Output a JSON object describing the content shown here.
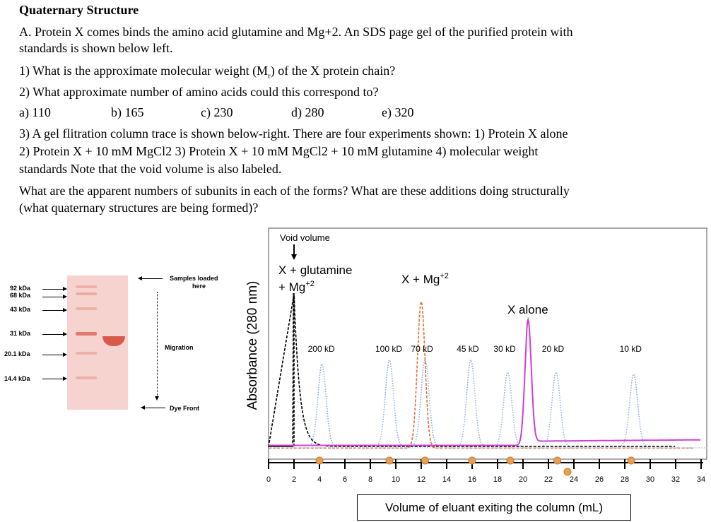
{
  "document": {
    "title": "Quaternary Structure",
    "lines": [
      "A. Protein X comes binds the amino acid glutamine and Mg+2. An SDS page gel of the purified protein with",
      "standards is shown below left.",
      "1) What is the approximate molecular weight (M",
      "2) What approximate number of amino acids could this correspond to?",
      "3) A gel flitration column trace is shown below-right. There are four experiments shown: 1) Protein X alone",
      "2) Protein X + 10 mM MgCl2 3) Protein X + 10 mM MgCl2 + 10 mM glutamine 4) molecular weight",
      "standards Note that the void volume is also labeled.",
      "What are the apparent numbers of subunits in each of the forms? What are these additions doing structurally",
      "(what quaternary structures are being formed)?"
    ],
    "q1_sub": "r",
    "q1_tail": ") of the X protein chain?",
    "choices": [
      "a) 110",
      "b) 165",
      "c) 230",
      "d) 280",
      "e) 320"
    ]
  },
  "gel": {
    "markers": [
      "92 kDa",
      "68 kDa",
      "43 kDa",
      "31 kDa",
      "20.1 kDa",
      "14.4 kDa"
    ],
    "samples_label_1": "Samples loaded",
    "samples_label_2": "here",
    "migration_label": "Migration",
    "dye_front_label": "Dye Front",
    "colors": {
      "gel": "#f7d3d0",
      "band": "#e07a6e"
    }
  },
  "chart_data": {
    "type": "line",
    "xlabel": "Volume of eluant exiting the column (mL)",
    "ylabel": "Absorbance (280 nm)",
    "xlim": [
      0,
      34
    ],
    "xticks": [
      0,
      2,
      4,
      6,
      8,
      10,
      12,
      14,
      16,
      18,
      20,
      22,
      24,
      26,
      28,
      30,
      32,
      34
    ],
    "ylim_relative": [
      0,
      1
    ],
    "grid": false,
    "annotations": {
      "void_volume": "Void volume",
      "glutamine_label_1": "X + glutamine",
      "glutamine_label_2": "+ Mg",
      "mg_label": "X + Mg",
      "superscript": "+2",
      "alone_label": "X alone"
    },
    "series": [
      {
        "name": "X + glutamine + Mg+2",
        "color": "#000000",
        "style": "dashed",
        "peaks": [
          {
            "x": 2.0,
            "y": 0.74
          }
        ]
      },
      {
        "name": "X + Mg+2",
        "color": "#e0703a",
        "style": "dashed",
        "peaks": [
          {
            "x": 12.0,
            "y": 0.71
          }
        ]
      },
      {
        "name": "X alone",
        "color": "#d040d0",
        "style": "solid",
        "peaks": [
          {
            "x": 20.4,
            "y": 0.59
          }
        ]
      },
      {
        "name": "standards",
        "color": "#7fa6e0",
        "style": "dotted",
        "peaks": [
          {
            "x": 4.2,
            "y": 0.4,
            "label": "200 kD"
          },
          {
            "x": 9.5,
            "y": 0.42,
            "label": "100 kD"
          },
          {
            "x": 12.3,
            "y": 0.42,
            "label": "70 kD"
          },
          {
            "x": 15.9,
            "y": 0.42,
            "label": "45 kD"
          },
          {
            "x": 18.8,
            "y": 0.36,
            "label": "30 kD"
          },
          {
            "x": 22.6,
            "y": 0.36,
            "label": "20 kD"
          },
          {
            "x": 28.7,
            "y": 0.35,
            "label": "10 kD"
          }
        ]
      }
    ],
    "fraction_markers": [
      4.0,
      9.5,
      12.3,
      16.0,
      19.0,
      22.7,
      23.5,
      28.5
    ],
    "marker_color": "#e8a050"
  }
}
